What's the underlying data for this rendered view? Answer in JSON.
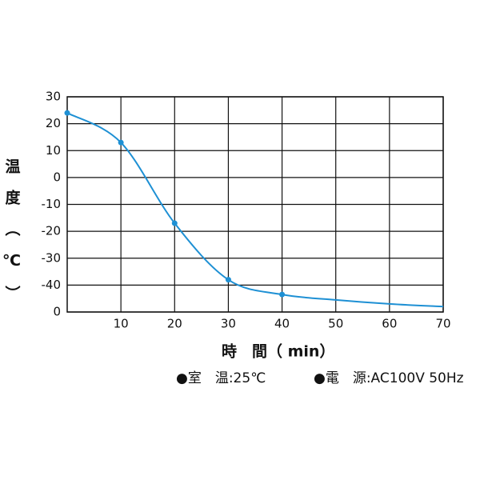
{
  "chart_data": {
    "type": "line",
    "x_label": "時　間（ min）",
    "y_label": "温度（℃）",
    "x": [
      0,
      10,
      20,
      30,
      40,
      50,
      60,
      70
    ],
    "series": [
      {
        "color": "#1e90d4",
        "values": [
          24,
          13,
          -17,
          -38,
          -43.5,
          -45.5,
          -47,
          -48
        ],
        "markers": [
          true,
          true,
          true,
          true,
          true,
          false,
          false,
          false
        ]
      }
    ],
    "xlim": [
      0,
      70
    ],
    "xticks": [
      10,
      20,
      30,
      40,
      50,
      60,
      70
    ],
    "ylim": [
      -50,
      30
    ],
    "yticks": [
      {
        "value": -50,
        "label": "0"
      },
      -40,
      -30,
      -20,
      -10,
      0,
      10,
      20,
      30
    ],
    "grid": true,
    "notes": [
      "●室　温:25℃",
      "●電　源:AC100V 50Hz"
    ]
  }
}
